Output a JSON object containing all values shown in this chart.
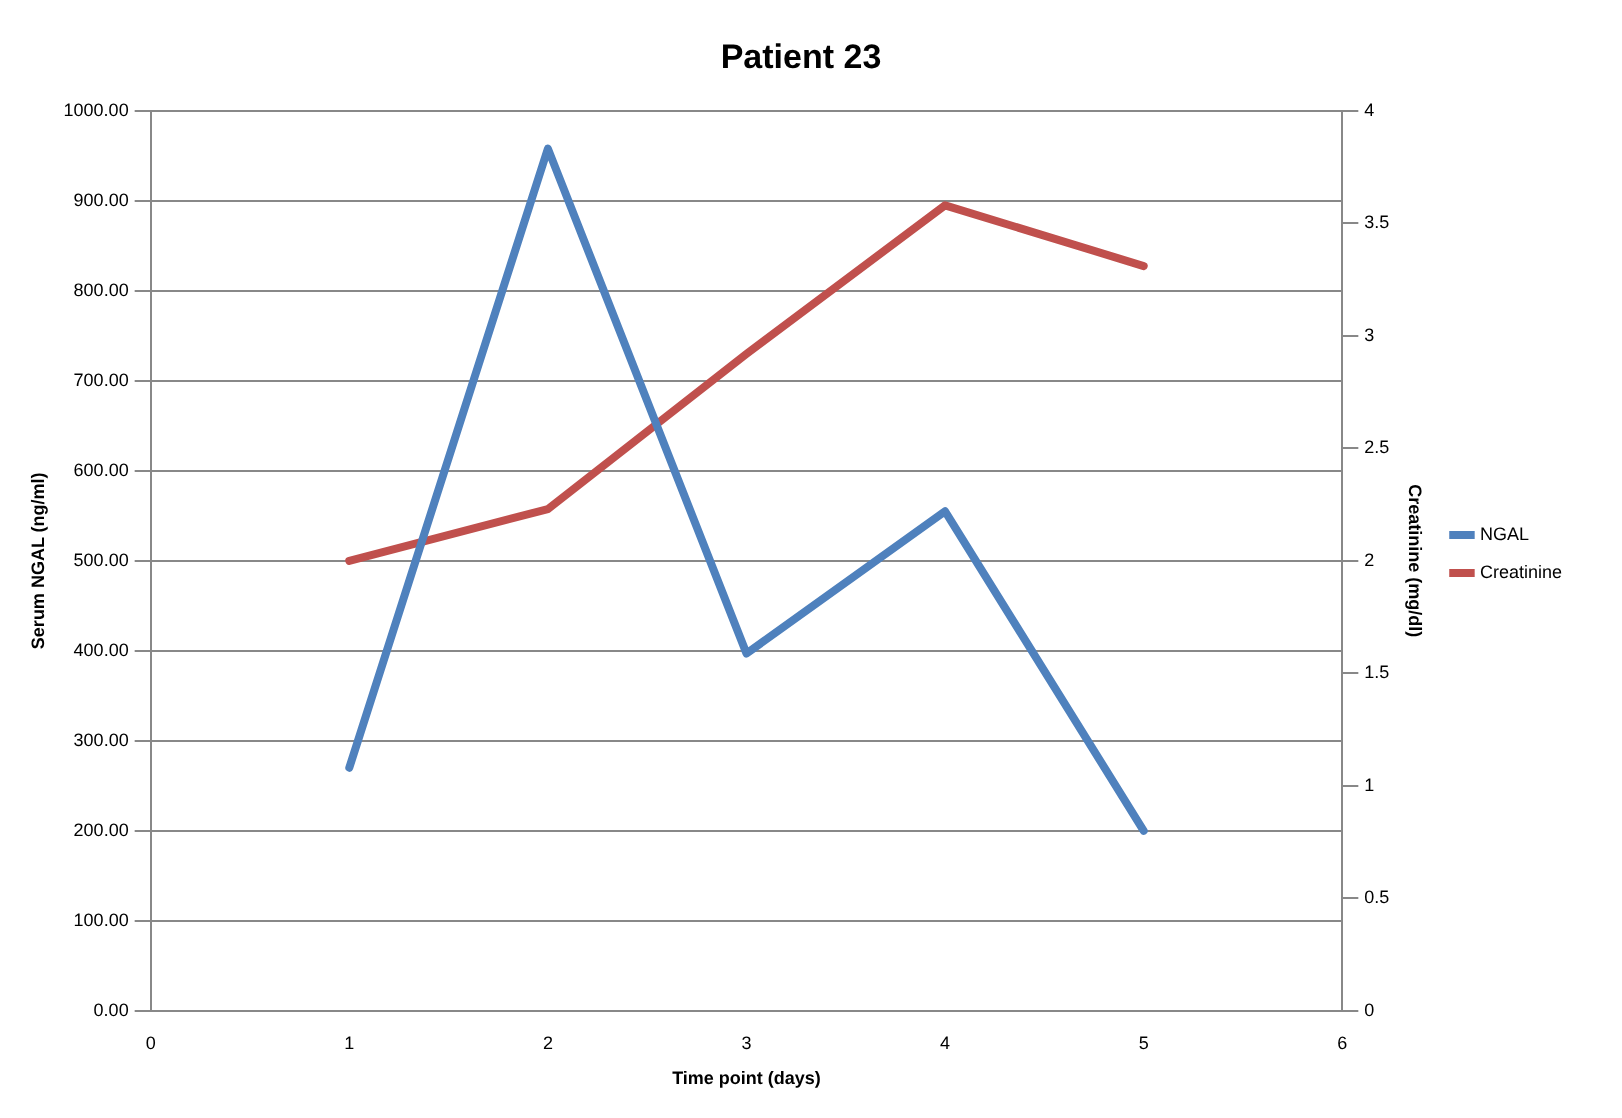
{
  "chart_data": {
    "type": "line",
    "title": "Patient 23",
    "xlabel": "Time point (days)",
    "ylabel": "Serum NGAL (ng/ml)",
    "y2label": "Creatinine (mg/dl)",
    "x": [
      1,
      2,
      3,
      4,
      5
    ],
    "series": [
      {
        "name": "NGAL",
        "color": "#4f81bd",
        "values": [
          270,
          958,
          397,
          555,
          200
        ]
      },
      {
        "name": "Creatinine",
        "color": "#c0504d",
        "values": [
          2.0,
          2.23,
          2.92,
          3.58,
          3.31
        ],
        "axis": "y2"
      }
    ],
    "xlim": [
      0,
      6
    ],
    "xticks": [
      0,
      1,
      2,
      3,
      4,
      5,
      6
    ],
    "ylim": [
      0,
      1000
    ],
    "yticks": [
      {
        "value": 0,
        "label": "0.00"
      },
      {
        "value": 100,
        "label": "100.00"
      },
      {
        "value": 200,
        "label": "200.00"
      },
      {
        "value": 300,
        "label": "300.00"
      },
      {
        "value": 400,
        "label": "400.00"
      },
      {
        "value": 500,
        "label": "500.00"
      },
      {
        "value": 600,
        "label": "600.00"
      },
      {
        "value": 700,
        "label": "700.00"
      },
      {
        "value": 800,
        "label": "800.00"
      },
      {
        "value": 900,
        "label": "900.00"
      },
      {
        "value": 1000,
        "label": "1000.00"
      }
    ],
    "y2lim": [
      0,
      4
    ],
    "y2ticks": [
      0,
      0.5,
      1,
      1.5,
      2,
      2.5,
      3,
      3.5,
      4
    ],
    "grid": "y",
    "legend": "right",
    "marker": "none",
    "line_style": "solid"
  }
}
